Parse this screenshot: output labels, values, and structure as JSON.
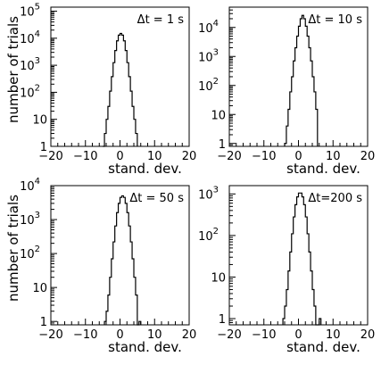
{
  "chart_data": [
    {
      "type": "histogram",
      "annotation": "Δt = 1 s",
      "xlabel": "stand. dev.",
      "ylabel": "number of trials",
      "y_scale": "log",
      "xlim": [
        -20,
        20
      ],
      "ylim_log_decades": [
        0,
        5.15
      ],
      "x_ticks": [
        "−20",
        "−10",
        "0",
        "10",
        "20"
      ],
      "y_ticks": [
        {
          "label": "1",
          "exp": null,
          "decade": 0
        },
        {
          "label": "10",
          "exp": null,
          "decade": 1
        },
        {
          "label": "10",
          "exp": "2",
          "decade": 2
        },
        {
          "label": "10",
          "exp": "3",
          "decade": 3
        },
        {
          "label": "10",
          "exp": "4",
          "decade": 4
        },
        {
          "label": "10",
          "exp": "5",
          "decade": 5
        }
      ],
      "bin_width": 0.5,
      "bins_start": -5.0,
      "counts": [
        1,
        3,
        10,
        30,
        110,
        380,
        1250,
        3500,
        8000,
        13000,
        15000,
        13000,
        8000,
        3500,
        1250,
        380,
        110,
        30,
        10,
        3
      ]
    },
    {
      "type": "histogram",
      "annotation": "Δt = 10 s",
      "xlabel": "stand. dev.",
      "ylabel": "",
      "y_scale": "log",
      "xlim": [
        -20,
        20
      ],
      "ylim_log_decades": [
        -0.1,
        4.7
      ],
      "x_ticks": [
        "−20",
        "−10",
        "0",
        "10",
        "20"
      ],
      "y_ticks": [
        {
          "label": "1",
          "exp": null,
          "decade": 0
        },
        {
          "label": "10",
          "exp": null,
          "decade": 1
        },
        {
          "label": "10",
          "exp": "2",
          "decade": 2
        },
        {
          "label": "10",
          "exp": "3",
          "decade": 3
        },
        {
          "label": "10",
          "exp": "4",
          "decade": 4
        }
      ],
      "bin_width": 0.5,
      "bins_start": -4.0,
      "counts": [
        1,
        4,
        15,
        60,
        200,
        700,
        2000,
        5000,
        11000,
        20000,
        26000,
        20000,
        11000,
        5000,
        2000,
        700,
        200,
        60,
        15
      ]
    },
    {
      "type": "histogram",
      "annotation": "Δt = 50 s",
      "xlabel": "stand. dev.",
      "ylabel": "number of trials",
      "y_scale": "log",
      "xlim": [
        -20,
        20
      ],
      "ylim_log_decades": [
        -0.1,
        4.0
      ],
      "x_ticks": [
        "−20",
        "−10",
        "0",
        "10",
        "20"
      ],
      "y_ticks": [
        {
          "label": "1",
          "exp": null,
          "decade": 0
        },
        {
          "label": "10",
          "exp": null,
          "decade": 1
        },
        {
          "label": "10",
          "exp": "2",
          "decade": 2
        },
        {
          "label": "10",
          "exp": "3",
          "decade": 3
        },
        {
          "label": "10",
          "exp": "4",
          "decade": 4
        }
      ],
      "bin_width": 0.5,
      "bins_start": -4.5,
      "counts": [
        1,
        2,
        6,
        20,
        70,
        220,
        650,
        1600,
        3000,
        4500,
        5000,
        4500,
        3000,
        1600,
        650,
        220,
        70,
        20,
        6,
        0,
        1
      ]
    },
    {
      "type": "histogram",
      "annotation": "Δt=200 s",
      "xlabel": "stand. dev.",
      "ylabel": "",
      "y_scale": "log",
      "xlim": [
        -20,
        20
      ],
      "ylim_log_decades": [
        -0.15,
        3.2
      ],
      "x_ticks": [
        "−20",
        "−10",
        "0",
        "10",
        "20"
      ],
      "y_ticks": [
        {
          "label": "1",
          "exp": null,
          "decade": 0
        },
        {
          "label": "10",
          "exp": null,
          "decade": 1
        },
        {
          "label": "10",
          "exp": "2",
          "decade": 2
        },
        {
          "label": "10",
          "exp": "3",
          "decade": 3
        }
      ],
      "bin_width": 0.5,
      "bins_start": -4.5,
      "counts": [
        1,
        2,
        5,
        14,
        40,
        110,
        280,
        550,
        850,
        1050,
        1050,
        850,
        550,
        280,
        110,
        40,
        14,
        5,
        2,
        0,
        0,
        1
      ]
    }
  ]
}
